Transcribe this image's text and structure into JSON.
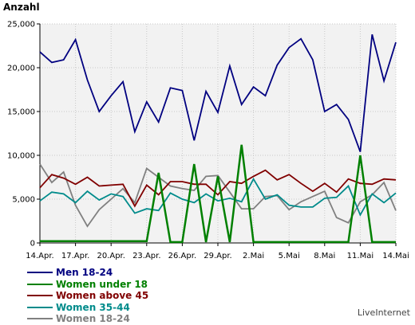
{
  "chart_data": {
    "type": "line",
    "ylabel": "Anzahl",
    "ylim": [
      0,
      25000
    ],
    "yticks": [
      "0",
      "5,000",
      "10,000",
      "15,000",
      "20,000",
      "25,000"
    ],
    "x_tick_labels": [
      "14.Apr.",
      "17.Apr.",
      "20.Apr.",
      "23.Apr.",
      "26.Apr.",
      "29.Apr.",
      "2.Mai",
      "5.Mai",
      "8.Mai",
      "11.Mai",
      "14.Mai"
    ],
    "x_points": 31,
    "grid": true,
    "legend_position": "bottom-left",
    "series": [
      {
        "name": "Men 18-24",
        "color": "#000080",
        "values": [
          21800,
          20600,
          20900,
          23200,
          18600,
          15000,
          16800,
          18400,
          12700,
          16100,
          13800,
          17700,
          17400,
          11700,
          17300,
          14900,
          20200,
          15800,
          17800,
          16800,
          20300,
          22300,
          23300,
          20900,
          15000,
          15800,
          14100,
          10400,
          23800,
          18500,
          22900
        ]
      },
      {
        "name": "Women under 18",
        "color": "#008000",
        "values": [
          200,
          200,
          200,
          200,
          200,
          200,
          200,
          200,
          200,
          200,
          8000,
          100,
          100,
          9000,
          100,
          7600,
          100,
          11200,
          100,
          100,
          100,
          100,
          100,
          100,
          100,
          100,
          100,
          10000,
          100,
          100,
          100
        ]
      },
      {
        "name": "Women above 45",
        "color": "#800000",
        "values": [
          6300,
          7800,
          7400,
          6700,
          7500,
          6500,
          6600,
          6700,
          4200,
          6600,
          5500,
          7000,
          7000,
          6700,
          6700,
          5500,
          7000,
          6800,
          7600,
          8300,
          7200,
          7800,
          6800,
          5900,
          6800,
          5800,
          7300,
          6800,
          6700,
          7300,
          7200
        ]
      },
      {
        "name": "Women 35-44",
        "color": "#008B8B",
        "values": [
          4800,
          5800,
          5600,
          4600,
          5900,
          4900,
          5600,
          5300,
          3400,
          3900,
          3700,
          5700,
          5000,
          4600,
          5600,
          4800,
          5100,
          4700,
          7300,
          5000,
          5500,
          4300,
          4100,
          4100,
          5100,
          5200,
          6500,
          3200,
          5600,
          4600,
          5700
        ]
      },
      {
        "name": "Women 18-24",
        "color": "#808080",
        "values": [
          9000,
          6900,
          8100,
          4300,
          1900,
          3800,
          5000,
          6200,
          4600,
          8500,
          7500,
          6500,
          6200,
          6000,
          7600,
          7700,
          5800,
          3900,
          3900,
          5300,
          5400,
          3800,
          4700,
          5300,
          5900,
          2900,
          2300,
          4700,
          5500,
          6900,
          3700
        ]
      }
    ]
  },
  "watermark": "LiveInternet"
}
